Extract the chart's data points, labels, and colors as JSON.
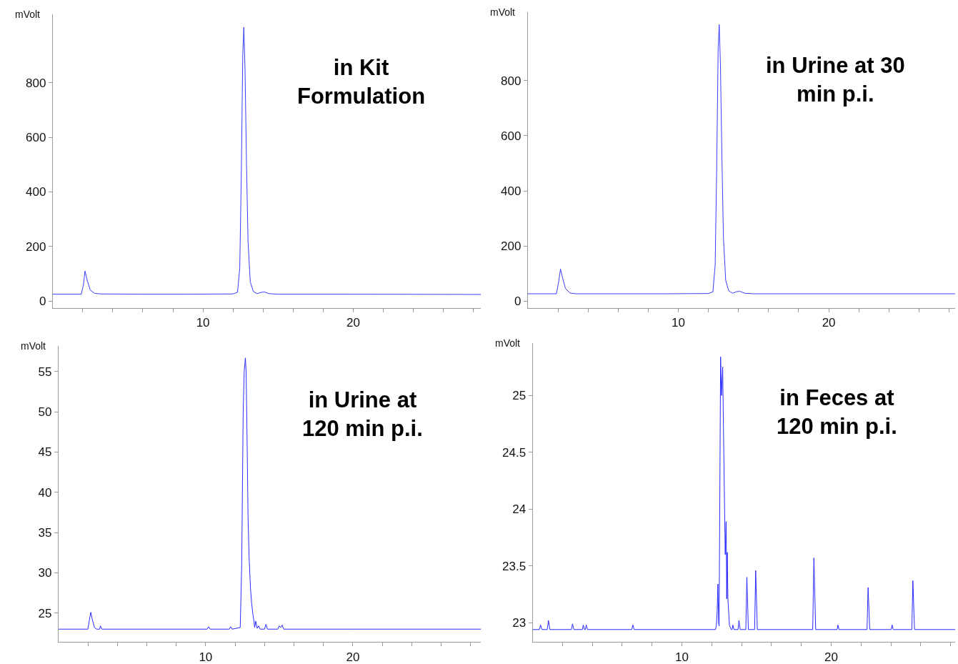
{
  "chart_data": [
    {
      "type": "line",
      "title": "in Kit\nFormulation",
      "ylabel": "mVolt",
      "x": [
        0,
        1.9,
        2.05,
        2.15,
        2.3,
        2.5,
        2.8,
        3.2,
        6,
        9,
        12.0,
        12.3,
        12.45,
        12.55,
        12.65,
        12.72,
        12.8,
        12.9,
        13.0,
        13.15,
        13.35,
        13.6,
        13.9,
        14.1,
        14.4,
        15,
        20,
        28.5
      ],
      "series": [
        {
          "color": "#3b3bff",
          "values": [
            25,
            25,
            60,
            110,
            75,
            40,
            28,
            26,
            25,
            25,
            26,
            32,
            120,
            450,
            900,
            1004,
            850,
            500,
            220,
            70,
            35,
            27,
            32,
            33,
            27,
            25,
            25,
            24
          ]
        }
      ],
      "xlim": [
        0,
        28.5
      ],
      "ylim": [
        -26,
        1050
      ],
      "xticks": [
        {
          "value": 2,
          "label": null
        },
        {
          "value": 4,
          "label": null
        },
        {
          "value": 6,
          "label": null
        },
        {
          "value": 8,
          "label": null
        },
        10,
        {
          "value": 12,
          "label": null
        },
        {
          "value": 14,
          "label": null
        },
        {
          "value": 16,
          "label": null
        },
        {
          "value": 18,
          "label": null
        },
        20,
        {
          "value": 22,
          "label": null
        },
        {
          "value": 24,
          "label": null
        },
        {
          "value": 26,
          "label": null
        },
        {
          "value": 28,
          "label": null
        }
      ],
      "yticks": [
        0,
        200,
        400,
        600,
        800
      ]
    },
    {
      "type": "line",
      "title": "in Urine at 30\nmin p.i.",
      "ylabel": "mVolt",
      "x": [
        0,
        1.9,
        2.05,
        2.17,
        2.3,
        2.5,
        2.8,
        3.2,
        6,
        9,
        12.0,
        12.3,
        12.45,
        12.55,
        12.65,
        12.72,
        12.8,
        12.9,
        13.0,
        13.15,
        13.35,
        13.6,
        13.9,
        14.1,
        14.4,
        15,
        20,
        28.4
      ],
      "series": [
        {
          "color": "#3b3bff",
          "values": [
            26,
            26,
            70,
            116,
            85,
            45,
            29,
            26,
            26,
            26,
            27,
            33,
            130,
            480,
            920,
            1004,
            860,
            520,
            230,
            75,
            37,
            28,
            34,
            35,
            28,
            26,
            26,
            26
          ]
        }
      ],
      "xlim": [
        0,
        28.4
      ],
      "ylim": [
        -26,
        1050
      ],
      "xticks": [
        {
          "value": 2,
          "label": null
        },
        {
          "value": 4,
          "label": null
        },
        {
          "value": 6,
          "label": null
        },
        {
          "value": 8,
          "label": null
        },
        10,
        {
          "value": 12,
          "label": null
        },
        {
          "value": 14,
          "label": null
        },
        {
          "value": 16,
          "label": null
        },
        {
          "value": 18,
          "label": null
        },
        20,
        {
          "value": 22,
          "label": null
        },
        {
          "value": 24,
          "label": null
        },
        {
          "value": 26,
          "label": null
        },
        {
          "value": 28,
          "label": null
        }
      ],
      "yticks": [
        0,
        200,
        400,
        600,
        800
      ]
    },
    {
      "type": "line",
      "title": "in Urine at\n120 min p.i.",
      "ylabel": "mVolt",
      "x": [
        0,
        2.0,
        2.1,
        2.2,
        2.3,
        2.45,
        2.6,
        2.8,
        2.85,
        2.95,
        10.1,
        10.2,
        10.3,
        11.6,
        11.7,
        11.8,
        12.35,
        12.45,
        12.55,
        12.62,
        12.7,
        12.75,
        12.82,
        12.88,
        12.95,
        13.05,
        13.12,
        13.2,
        13.28,
        13.33,
        13.4,
        13.5,
        13.6,
        13.7,
        14.0,
        14.1,
        14.2,
        14.9,
        15.0,
        15.1,
        15.2,
        15.3,
        20,
        28.7
      ],
      "series": [
        {
          "color": "#2a2aff",
          "values": [
            23.0,
            23.0,
            24.1,
            25.1,
            24.2,
            23.2,
            23.0,
            23.0,
            23.4,
            23.0,
            23.0,
            23.3,
            23.0,
            23.0,
            23.3,
            23.0,
            23.2,
            31,
            50,
            55,
            56.7,
            55,
            46,
            37,
            32,
            28,
            26.3,
            25,
            24,
            23.2,
            24,
            23.1,
            23.4,
            23.0,
            23.0,
            23.6,
            23.0,
            23.0,
            23.4,
            23.2,
            23.5,
            23.0,
            23.0,
            23.0
          ]
        }
      ],
      "xlim": [
        0,
        28.7
      ],
      "ylim": [
        21.4,
        58.2
      ],
      "xticks": [
        {
          "value": 2,
          "label": null
        },
        {
          "value": 4,
          "label": null
        },
        {
          "value": 6,
          "label": null
        },
        {
          "value": 8,
          "label": null
        },
        10,
        {
          "value": 12,
          "label": null
        },
        {
          "value": 14,
          "label": null
        },
        {
          "value": 16,
          "label": null
        },
        {
          "value": 18,
          "label": null
        },
        20,
        {
          "value": 22,
          "label": null
        },
        {
          "value": 24,
          "label": null
        },
        {
          "value": 26,
          "label": null
        },
        {
          "value": 28,
          "label": null
        }
      ],
      "yticks": [
        25,
        30,
        35,
        40,
        45,
        50,
        55
      ]
    },
    {
      "type": "line",
      "title": "in Feces at\n120 min p.i.",
      "ylabel": "mVolt",
      "x": [
        0,
        0.45,
        0.53,
        0.62,
        0.98,
        1.06,
        1.15,
        2.6,
        2.67,
        2.76,
        3.33,
        3.39,
        3.47,
        3.53,
        3.59,
        3.67,
        6.64,
        6.71,
        6.8,
        12.25,
        12.31,
        12.36,
        12.41,
        12.46,
        12.49,
        12.59,
        12.65,
        12.73,
        12.78,
        12.86,
        12.9,
        12.96,
        13.0,
        13.04,
        13.08,
        13.18,
        13.3,
        13.36,
        13.41,
        13.48,
        13.76,
        13.82,
        13.9,
        14.28,
        14.35,
        14.45,
        14.87,
        14.94,
        15.05,
        18.76,
        18.84,
        18.96,
        20.4,
        20.45,
        20.52,
        22.4,
        22.47,
        22.58,
        24.02,
        24.08,
        24.15,
        25.4,
        25.47,
        25.58,
        28.3
      ],
      "series": [
        {
          "color": "#2a2aff",
          "values": [
            22.94,
            22.94,
            22.98,
            22.94,
            22.94,
            23.02,
            22.94,
            22.94,
            22.99,
            22.94,
            22.94,
            22.98,
            22.94,
            22.94,
            22.98,
            22.94,
            22.94,
            22.98,
            22.94,
            22.94,
            22.98,
            23.1,
            23.34,
            23.0,
            22.97,
            25.34,
            25.0,
            25.25,
            24.73,
            23.98,
            23.6,
            23.89,
            23.21,
            23.62,
            23.21,
            22.98,
            22.94,
            22.94,
            22.98,
            22.94,
            22.94,
            23.02,
            22.94,
            22.94,
            23.4,
            22.94,
            22.94,
            23.46,
            22.94,
            22.94,
            23.57,
            22.94,
            22.94,
            22.98,
            22.94,
            22.94,
            23.31,
            22.94,
            22.94,
            22.98,
            22.94,
            22.94,
            23.37,
            22.94,
            22.94
          ]
        }
      ],
      "xlim": [
        0,
        28.3
      ],
      "ylim": [
        22.83,
        25.46
      ],
      "xticks": [
        {
          "value": 2,
          "label": null
        },
        {
          "value": 4,
          "label": null
        },
        {
          "value": 6,
          "label": null
        },
        {
          "value": 8,
          "label": null
        },
        10,
        {
          "value": 12,
          "label": null
        },
        {
          "value": 14,
          "label": null
        },
        {
          "value": 16,
          "label": null
        },
        {
          "value": 18,
          "label": null
        },
        20,
        {
          "value": 22,
          "label": null
        },
        {
          "value": 24,
          "label": null
        },
        {
          "value": 26,
          "label": null
        },
        {
          "value": 28,
          "label": null
        }
      ],
      "yticks": [
        23,
        23.5,
        24,
        24.5,
        25
      ]
    }
  ]
}
